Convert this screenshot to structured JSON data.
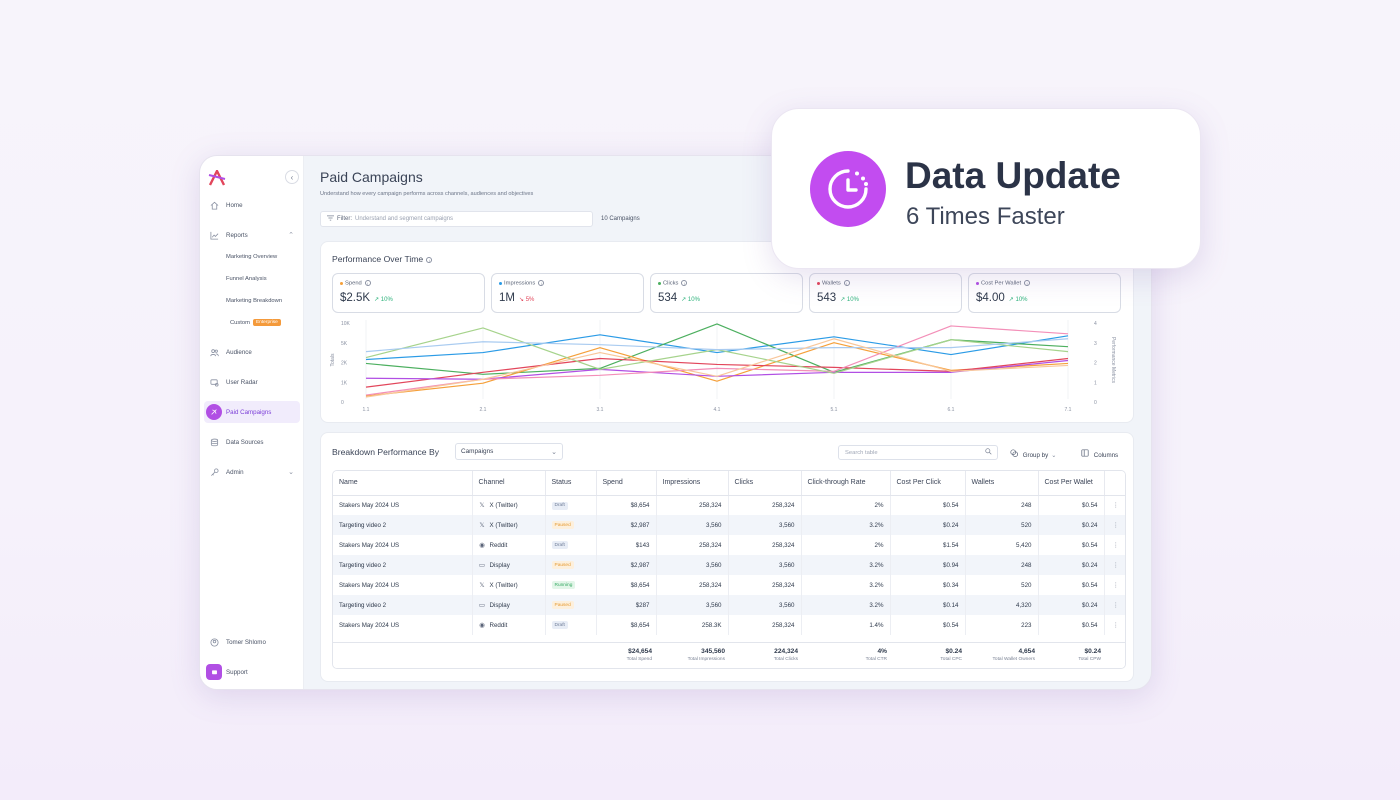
{
  "sidebar": {
    "items": [
      {
        "label": "Home",
        "icon": "home-icon"
      },
      {
        "label": "Reports",
        "icon": "chart-line-icon"
      },
      {
        "label": "Audience",
        "icon": "users-icon"
      },
      {
        "label": "User Radar",
        "icon": "radar-icon"
      },
      {
        "label": "Paid Campaigns",
        "icon": "campaign-icon"
      },
      {
        "label": "Data Sources",
        "icon": "database-icon"
      },
      {
        "label": "Admin",
        "icon": "key-icon"
      }
    ],
    "reports_sub": [
      "Marketing Overview",
      "Funnel Analysis",
      "Marketing Breakdown",
      "Custom"
    ],
    "custom_badge": "Enterprise",
    "user": "Tomer Shlomo",
    "support": "Support"
  },
  "header": {
    "title": "Paid Campaigns",
    "subtitle": "Understand how every campaign performs across channels, audiences and objectives",
    "filter_label": "Filter:",
    "filter_placeholder": "Understand and segment campaigns",
    "count": "10 Campaigns"
  },
  "performance": {
    "title": "Performance Over Time",
    "kpis": [
      {
        "label": "Spend",
        "value": "$2.5K",
        "change": "10%",
        "dir": "up",
        "color": "#f5a03a"
      },
      {
        "label": "Impressions",
        "value": "1M",
        "change": "5%",
        "dir": "down",
        "color": "#2b9be6"
      },
      {
        "label": "Clicks",
        "value": "534",
        "change": "10%",
        "dir": "up",
        "color": "#4caf5f"
      },
      {
        "label": "Wallets",
        "value": "543",
        "change": "10%",
        "dir": "up",
        "color": "#e2465b"
      },
      {
        "label": "Cost Per Wallet",
        "value": "$4.00",
        "change": "10%",
        "dir": "up",
        "color": "#b14fe4"
      }
    ]
  },
  "chart_data": {
    "type": "line",
    "x": [
      "1.1",
      "2.1",
      "3.1",
      "4.1",
      "5.1",
      "6.1",
      "7.1"
    ],
    "y_left_ticks": [
      "10K",
      "5K",
      "2K",
      "1K",
      "0"
    ],
    "y_right_ticks": [
      "4",
      "3",
      "2",
      "1",
      "0"
    ],
    "ylabel_left": "Totals",
    "ylabel_right": "Performance Metrics",
    "y_range": [
      0,
      4
    ],
    "series": [
      {
        "color": "#2b9be6",
        "values": [
          2.0,
          2.35,
          3.25,
          2.35,
          3.15,
          2.25,
          3.2
        ]
      },
      {
        "color": "#4caf5f",
        "values": [
          1.8,
          1.25,
          1.55,
          3.8,
          1.35,
          3.0,
          2.65
        ]
      },
      {
        "color": "#f5a03a",
        "values": [
          0.15,
          0.8,
          2.6,
          0.9,
          2.85,
          1.45,
          1.8
        ]
      },
      {
        "color": "#e2465b",
        "values": [
          0.6,
          1.35,
          2.05,
          1.75,
          1.6,
          1.4,
          2.05
        ]
      },
      {
        "color": "#b14fe4",
        "values": [
          1.05,
          1.0,
          1.5,
          1.15,
          1.35,
          1.35,
          1.95
        ]
      },
      {
        "color": "#f38fb8",
        "values": [
          0.2,
          1.0,
          1.2,
          1.55,
          1.4,
          3.7,
          3.3
        ]
      },
      {
        "color": "#a6d38c",
        "values": [
          2.1,
          3.6,
          1.5,
          2.5,
          1.3,
          3.0,
          2.4
        ]
      },
      {
        "color": "#a9cbf0",
        "values": [
          2.4,
          2.9,
          2.75,
          2.5,
          2.6,
          2.6,
          3.05
        ]
      },
      {
        "color": "#f8c79b",
        "values": [
          0.1,
          1.0,
          2.35,
          1.15,
          3.05,
          1.4,
          1.7
        ]
      }
    ]
  },
  "breakdown": {
    "title": "Breakdown Performance By",
    "select": "Campaigns",
    "search_placeholder": "Search table",
    "group_by": "Group by",
    "columns": "Columns",
    "headers": [
      "Name",
      "Channel",
      "Status",
      "Spend",
      "Impressions",
      "Clicks",
      "Click-through Rate",
      "Cost Per Click",
      "Wallets",
      "Cost Per Wallet"
    ],
    "rows": [
      {
        "name": "Stakers May 2024 US",
        "channel": "X (Twitter)",
        "channel_icon": "x-icon",
        "status": "Draft",
        "spend": "$8,654",
        "impressions": "258,324",
        "clicks": "258,324",
        "ctr": "2%",
        "cpc": "$0.54",
        "wallets": "248",
        "cpw": "$0.54"
      },
      {
        "name": "Targeting video 2",
        "channel": "X (Twitter)",
        "channel_icon": "x-icon",
        "status": "Paused",
        "spend": "$2,987",
        "impressions": "3,560",
        "clicks": "3,560",
        "ctr": "3.2%",
        "cpc": "$0.24",
        "wallets": "520",
        "cpw": "$0.24"
      },
      {
        "name": "Stakers May 2024 US",
        "channel": "Reddit",
        "channel_icon": "reddit-icon",
        "status": "Draft",
        "spend": "$143",
        "impressions": "258,324",
        "clicks": "258,324",
        "ctr": "2%",
        "cpc": "$1.54",
        "wallets": "5,420",
        "cpw": "$0.54"
      },
      {
        "name": "Targeting video 2",
        "channel": "Display",
        "channel_icon": "display-icon",
        "status": "Paused",
        "spend": "$2,987",
        "impressions": "3,560",
        "clicks": "3,560",
        "ctr": "3.2%",
        "cpc": "$0.94",
        "wallets": "248",
        "cpw": "$0.24"
      },
      {
        "name": "Stakers May 2024 US",
        "channel": "X (Twitter)",
        "channel_icon": "x-icon",
        "status": "Running",
        "spend": "$8,654",
        "impressions": "258,324",
        "clicks": "258,324",
        "ctr": "3.2%",
        "cpc": "$0.34",
        "wallets": "520",
        "cpw": "$0.54"
      },
      {
        "name": "Targeting video 2",
        "channel": "Display",
        "channel_icon": "display-icon",
        "status": "Paused",
        "spend": "$287",
        "impressions": "3,560",
        "clicks": "3,560",
        "ctr": "3.2%",
        "cpc": "$0.14",
        "wallets": "4,320",
        "cpw": "$0.24"
      },
      {
        "name": "Stakers May 2024 US",
        "channel": "Reddit",
        "channel_icon": "reddit-icon",
        "status": "Draft",
        "spend": "$8,654",
        "impressions": "258.3K",
        "clicks": "258,324",
        "ctr": "1.4%",
        "cpc": "$0.54",
        "wallets": "223",
        "cpw": "$0.54"
      }
    ],
    "totals": [
      {
        "value": "$24,654",
        "label": "Total Spend"
      },
      {
        "value": "345,560",
        "label": "Total Impressions"
      },
      {
        "value": "224,324",
        "label": "Total Clicks"
      },
      {
        "value": "4%",
        "label": "Total CTR"
      },
      {
        "value": "$0.24",
        "label": "Total CPC"
      },
      {
        "value": "4,654",
        "label": "Total Wallet Owners"
      },
      {
        "value": "$0.24",
        "label": "Total CPW"
      }
    ]
  },
  "callout": {
    "title": "Data Update",
    "subtitle": "6 Times Faster",
    "icon": "clock-icon"
  }
}
